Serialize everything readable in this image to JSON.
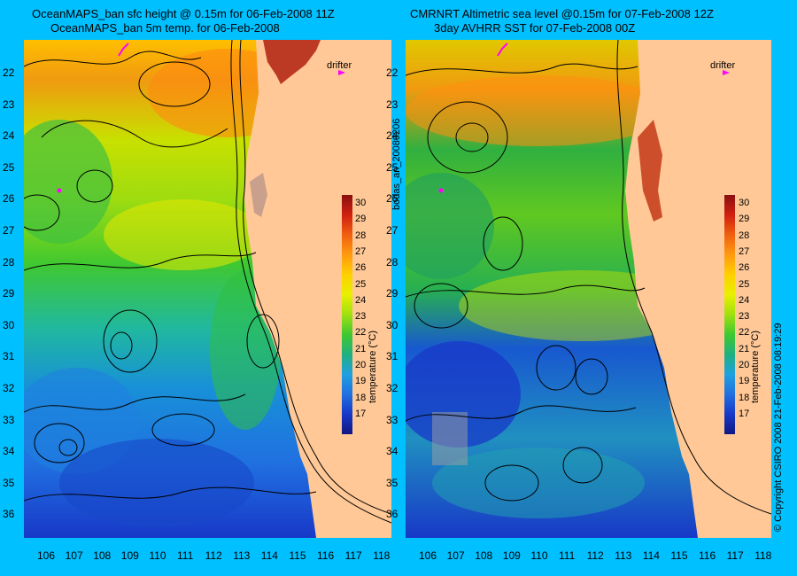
{
  "left": {
    "title1": "OceanMAPS_ban sfc height @ 0.15m for 06-Feb-2008 11Z",
    "title2": "OceanMAPS_ban 5m temp. for 06-Feb-2008",
    "drifter_label": "drifter"
  },
  "right": {
    "title1": "CMRNRT Altimetric sea level  @0.15m  for 07-Feb-2008 12Z",
    "title2": "3day AVHRR SST for 07-Feb-2008 00Z",
    "drifter_label": "drifter"
  },
  "colorbar": {
    "label": "temperature (°C)",
    "ticks": [
      "30",
      "29",
      "28",
      "27",
      "26",
      "25",
      "24",
      "23",
      "22",
      "21",
      "20",
      "19",
      "18",
      "17"
    ]
  },
  "y_ticks": [
    "22",
    "23",
    "24",
    "25",
    "26",
    "27",
    "28",
    "29",
    "30",
    "31",
    "32",
    "33",
    "34",
    "35",
    "36"
  ],
  "x_ticks": [
    "106",
    "107",
    "108",
    "109",
    "110",
    "111",
    "112",
    "113",
    "114",
    "115",
    "116",
    "117",
    "118"
  ],
  "side_label_left": "bodas_an_20080206",
  "side_label_right": "© Copyright CSIRO 2008    21-Feb-2008 08:19:29",
  "colors": {
    "background": "#00c0ff",
    "land": "#ffc896",
    "drifter_marker": "#ff00ff"
  }
}
